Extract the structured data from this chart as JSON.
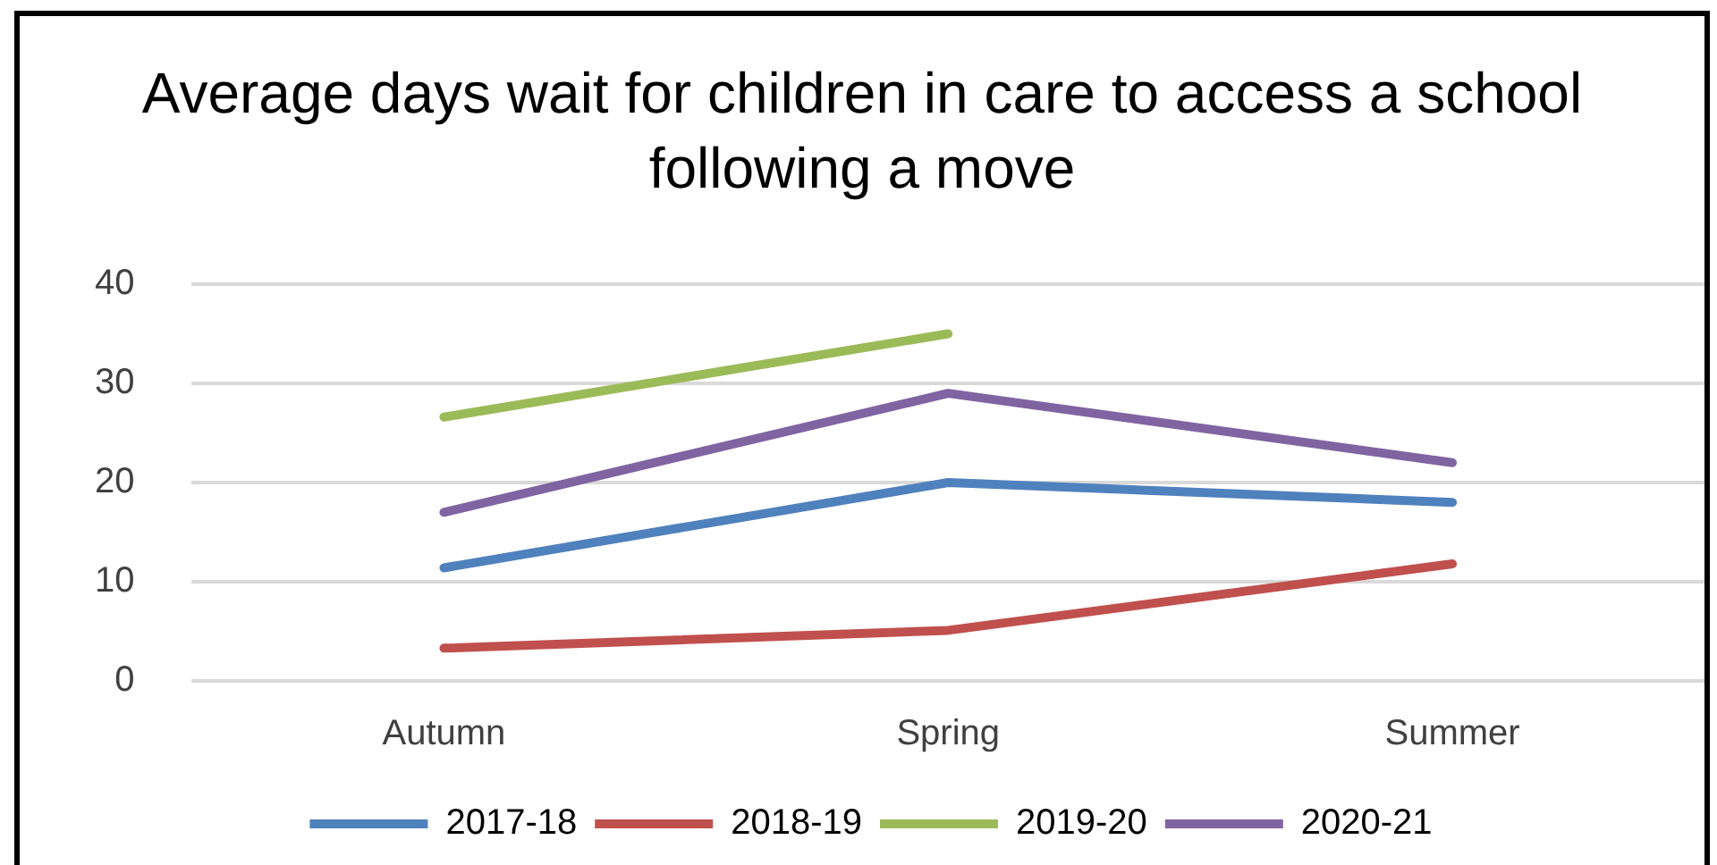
{
  "chart_data": {
    "type": "line",
    "title": "Average days wait for children in care to access a school following a move",
    "categories": [
      "Autumn",
      "Spring",
      "Summer"
    ],
    "series": [
      {
        "name": "2017-18",
        "color": "#4f81bd",
        "values": [
          11.4,
          20,
          18
        ]
      },
      {
        "name": "2018-19",
        "color": "#c0504d",
        "values": [
          3.3,
          5.1,
          11.8
        ]
      },
      {
        "name": "2019-20",
        "color": "#9bbb59",
        "values": [
          26.6,
          35,
          null
        ]
      },
      {
        "name": "2020-21",
        "color": "#8064a2",
        "values": [
          17,
          29,
          22
        ]
      }
    ],
    "ylim": [
      0,
      40
    ],
    "yticks": [
      0,
      10,
      20,
      30,
      40
    ],
    "grid": "y",
    "legend": "bottom",
    "marker": "none",
    "line_style": "solid"
  }
}
